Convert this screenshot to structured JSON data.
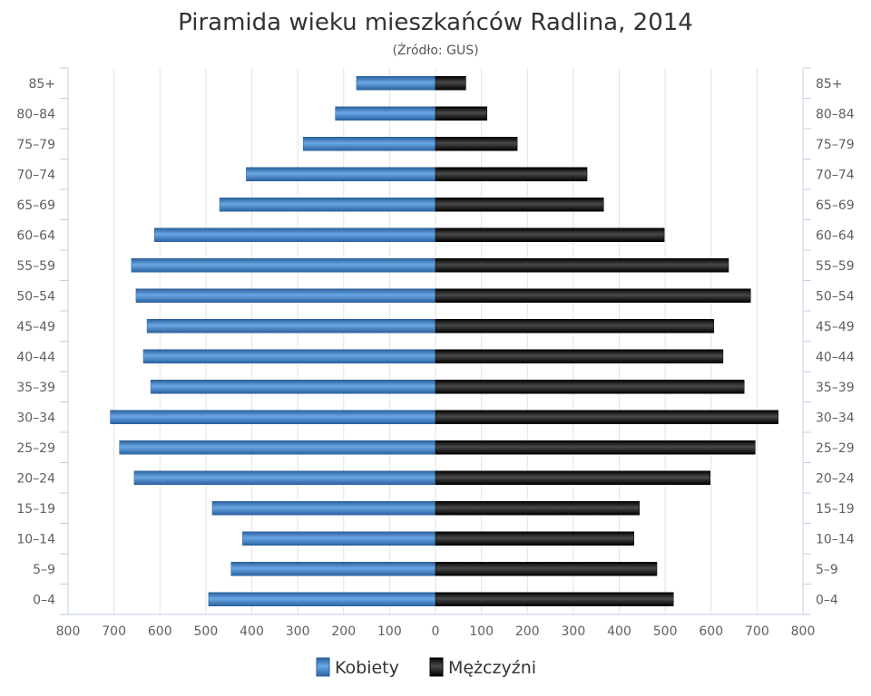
{
  "chart_data": {
    "type": "bar",
    "orientation": "horizontal-population-pyramid",
    "title": "Piramida wieku mieszkańców Radlina, 2014",
    "subtitle": "(Źródło: GUS)",
    "categories": [
      "0–4",
      "5–9",
      "10–14",
      "15–19",
      "20–24",
      "25–29",
      "30–34",
      "35–39",
      "40–44",
      "45–49",
      "50–54",
      "55–59",
      "60–64",
      "65–69",
      "70–74",
      "75–79",
      "80–84",
      "85+"
    ],
    "series": [
      {
        "name": "Kobiety",
        "color": "#3d7fc6",
        "values": [
          494,
          445,
          420,
          486,
          656,
          688,
          708,
          620,
          636,
          628,
          652,
          662,
          612,
          470,
          412,
          288,
          218,
          172
        ]
      },
      {
        "name": "Mężczyźni",
        "color": "#151515",
        "values": [
          518,
          482,
          432,
          444,
          598,
          696,
          746,
          672,
          626,
          606,
          686,
          638,
          498,
          366,
          330,
          178,
          112,
          66
        ]
      }
    ],
    "xlim": [
      -800,
      800
    ],
    "x_ticks": [
      -800,
      -700,
      -600,
      -500,
      -400,
      -300,
      -200,
      -100,
      0,
      100,
      200,
      300,
      400,
      500,
      600,
      700,
      800
    ],
    "x_tick_labels": [
      "800",
      "700",
      "600",
      "500",
      "400",
      "300",
      "200",
      "100",
      "0",
      "100",
      "200",
      "300",
      "400",
      "500",
      "600",
      "700",
      "800"
    ],
    "grid": true,
    "legend": "bottom-center"
  }
}
